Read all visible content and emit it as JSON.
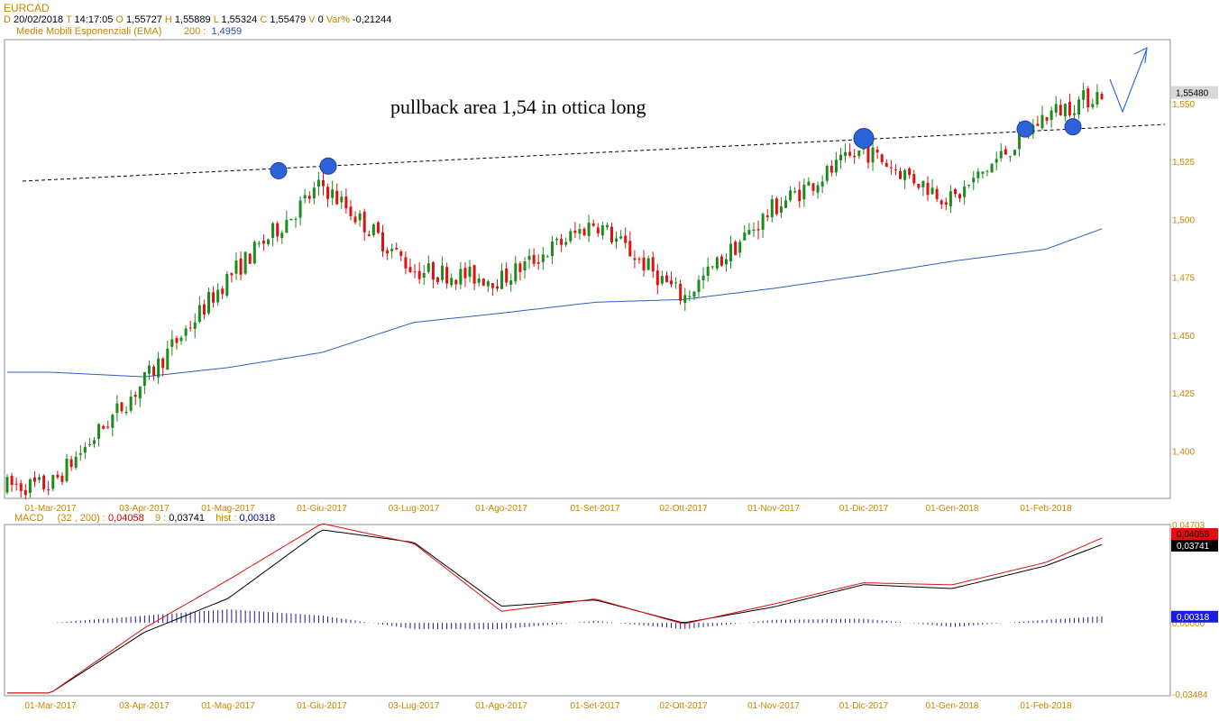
{
  "header": {
    "symbol": "EURCAD",
    "d_label": "D",
    "date": "20/02/2018",
    "t_label": "T",
    "time": "14:17:05",
    "o_label": "O",
    "open": "1,55727",
    "h_label": "H",
    "high": "1,55889",
    "l_label": "L",
    "low": "1,55324",
    "c_label": "C",
    "close": "1,55479",
    "v_label": "V",
    "volume": "0",
    "var_label": "Var%",
    "var": "-0,21244",
    "ema_label": "Medie Mobili Esponenziali (EMA)",
    "ema_period": "200 :",
    "ema_value": "1,4959"
  },
  "macd_header": {
    "label": "MACD",
    "params": "(32 , 200) :",
    "macd_value": "0,04058",
    "signal_period": "9 :",
    "signal_value": "0,03741",
    "hist_label": "hist :",
    "hist_value": "0,00318"
  },
  "annotation": "pullback area 1,54 in ottica long",
  "colors": {
    "up": "#1c8a1c",
    "down": "#e01010",
    "ema": "#2f5fbf",
    "macd": "#e01010",
    "signal": "#000000",
    "hist": "#1a1a9c",
    "marker": "#2d63d8"
  },
  "chart_data": [
    {
      "type": "candlestick",
      "title": "EURCAD",
      "x_tick_labels": [
        "01-Mar-2017",
        "03-Apr-2017",
        "01-Mag-2017",
        "01-Giu-2017",
        "03-Lug-2017",
        "01-Ago-2017",
        "01-Set-2017",
        "02-Ott-2017",
        "01-Nov-2017",
        "01-Dic-2017",
        "01-Gen-2018",
        "01-Feb-2018"
      ],
      "y_tick_labels": [
        "1,400",
        "1,425",
        "1,450",
        "1,475",
        "1,500",
        "1,525",
        "1,550"
      ],
      "ylim": [
        1.3795,
        1.5776
      ],
      "last_price_label": "1,55480",
      "last_price": 1.5548,
      "grid": false,
      "price_path": [
        {
          "date": "01-Mar-2017",
          "close": 1.385
        },
        {
          "date": "03-Apr-2017",
          "close": 1.43
        },
        {
          "date": "01-Mag-2017",
          "close": 1.475
        },
        {
          "date": "01-Giu-2017",
          "close": 1.515
        },
        {
          "date": "03-Lug-2017",
          "close": 1.478
        },
        {
          "date": "01-Ago-2017",
          "close": 1.474
        },
        {
          "date": "01-Set-2017",
          "close": 1.499
        },
        {
          "date": "02-Ott-2017",
          "close": 1.466
        },
        {
          "date": "01-Nov-2017",
          "close": 1.505
        },
        {
          "date": "01-Dic-2017",
          "close": 1.53
        },
        {
          "date": "01-Gen-2018",
          "close": 1.508
        },
        {
          "date": "01-Feb-2018",
          "close": 1.545
        },
        {
          "date": "20/02/2018",
          "close": 1.5548
        }
      ],
      "series": [
        {
          "name": "EMA 200",
          "values": [
            {
              "date": "01-Mar-2017",
              "value": 1.434
            },
            {
              "date": "03-Apr-2017",
              "value": 1.432
            },
            {
              "date": "01-Mag-2017",
              "value": 1.436
            },
            {
              "date": "01-Giu-2017",
              "value": 1.4425
            },
            {
              "date": "03-Lug-2017",
              "value": 1.4555
            },
            {
              "date": "01-Ago-2017",
              "value": 1.4595
            },
            {
              "date": "01-Set-2017",
              "value": 1.4642
            },
            {
              "date": "02-Ott-2017",
              "value": 1.4654
            },
            {
              "date": "01-Nov-2017",
              "value": 1.4702
            },
            {
              "date": "01-Dic-2017",
              "value": 1.4758
            },
            {
              "date": "01-Gen-2018",
              "value": 1.4819
            },
            {
              "date": "01-Feb-2018",
              "value": 1.4871
            },
            {
              "date": "20/02/2018",
              "value": 1.4959
            }
          ]
        }
      ],
      "trendline": [
        {
          "date": "01-Mar-2017",
          "value": 1.5165
        },
        {
          "date": "20/02/2018",
          "value": 1.541
        }
      ],
      "markers": [
        {
          "date": "01-Giu-2017",
          "value": 1.521
        },
        {
          "date": "01-Giu-2017",
          "value": 1.523
        },
        {
          "date": "01-Dic-2017",
          "value": 1.535
        },
        {
          "date": "01-Feb-2018",
          "value": 1.539
        },
        {
          "date": "20/02/2018",
          "value": 1.54
        }
      ],
      "annotations": [
        "pullback area 1,54 in ottica long"
      ]
    },
    {
      "type": "line",
      "title": "MACD",
      "x_tick_labels": [
        "01-Mar-2017",
        "03-Apr-2017",
        "01-Mag-2017",
        "01-Giu-2017",
        "03-Lug-2017",
        "01-Ago-2017",
        "01-Set-2017",
        "02-Ott-2017",
        "01-Nov-2017",
        "01-Dic-2017",
        "01-Gen-2018",
        "01-Feb-2018"
      ],
      "y_tick_labels": [
        "0,04703",
        "0,00000",
        "-0,03484"
      ],
      "ylim": [
        -0.03484,
        0.04703
      ],
      "value_labels": [
        "0,04058",
        "0,03741",
        "0,00318"
      ],
      "series": [
        {
          "name": "MACD (32 , 200)",
          "values": [
            {
              "date": "01-Mar-2017",
              "value": -0.0335
            },
            {
              "date": "03-Apr-2017",
              "value": -0.0025
            },
            {
              "date": "01-Mag-2017",
              "value": 0.0205
            },
            {
              "date": "01-Giu-2017",
              "value": 0.0475
            },
            {
              "date": "03-Lug-2017",
              "value": 0.038
            },
            {
              "date": "01-Ago-2017",
              "value": 0.0055
            },
            {
              "date": "01-Set-2017",
              "value": 0.0115
            },
            {
              "date": "02-Ott-2017",
              "value": -0.0005
            },
            {
              "date": "01-Nov-2017",
              "value": 0.009
            },
            {
              "date": "01-Dic-2017",
              "value": 0.0192
            },
            {
              "date": "01-Gen-2018",
              "value": 0.0182
            },
            {
              "date": "01-Feb-2018",
              "value": 0.0289
            },
            {
              "date": "20/02/2018",
              "value": 0.04058
            }
          ]
        },
        {
          "name": "9",
          "values": [
            {
              "date": "01-Mar-2017",
              "value": -0.0335
            },
            {
              "date": "03-Apr-2017",
              "value": -0.0045
            },
            {
              "date": "01-Mag-2017",
              "value": 0.0117
            },
            {
              "date": "01-Giu-2017",
              "value": 0.0445
            },
            {
              "date": "03-Lug-2017",
              "value": 0.0385
            },
            {
              "date": "01-Ago-2017",
              "value": 0.008
            },
            {
              "date": "01-Set-2017",
              "value": 0.011
            },
            {
              "date": "02-Ott-2017",
              "value": 0.0
            },
            {
              "date": "01-Nov-2017",
              "value": 0.0076
            },
            {
              "date": "01-Dic-2017",
              "value": 0.0183
            },
            {
              "date": "01-Gen-2018",
              "value": 0.0164
            },
            {
              "date": "01-Feb-2018",
              "value": 0.0273
            },
            {
              "date": "20/02/2018",
              "value": 0.03741
            }
          ]
        },
        {
          "name": "hist",
          "values": [
            {
              "date": "01-Mar-2017",
              "value": 0.0
            },
            {
              "date": "03-Apr-2017",
              "value": 0.0035
            },
            {
              "date": "01-Mag-2017",
              "value": 0.0065
            },
            {
              "date": "01-Giu-2017",
              "value": 0.0035
            },
            {
              "date": "03-Lug-2017",
              "value": -0.003
            },
            {
              "date": "01-Ago-2017",
              "value": -0.003
            },
            {
              "date": "01-Set-2017",
              "value": 0.001
            },
            {
              "date": "02-Ott-2017",
              "value": -0.003
            },
            {
              "date": "01-Nov-2017",
              "value": 0.0015
            },
            {
              "date": "01-Dic-2017",
              "value": 0.002
            },
            {
              "date": "01-Gen-2018",
              "value": -0.002
            },
            {
              "date": "01-Feb-2018",
              "value": 0.0015
            },
            {
              "date": "20/02/2018",
              "value": 0.00318
            }
          ]
        }
      ]
    }
  ]
}
